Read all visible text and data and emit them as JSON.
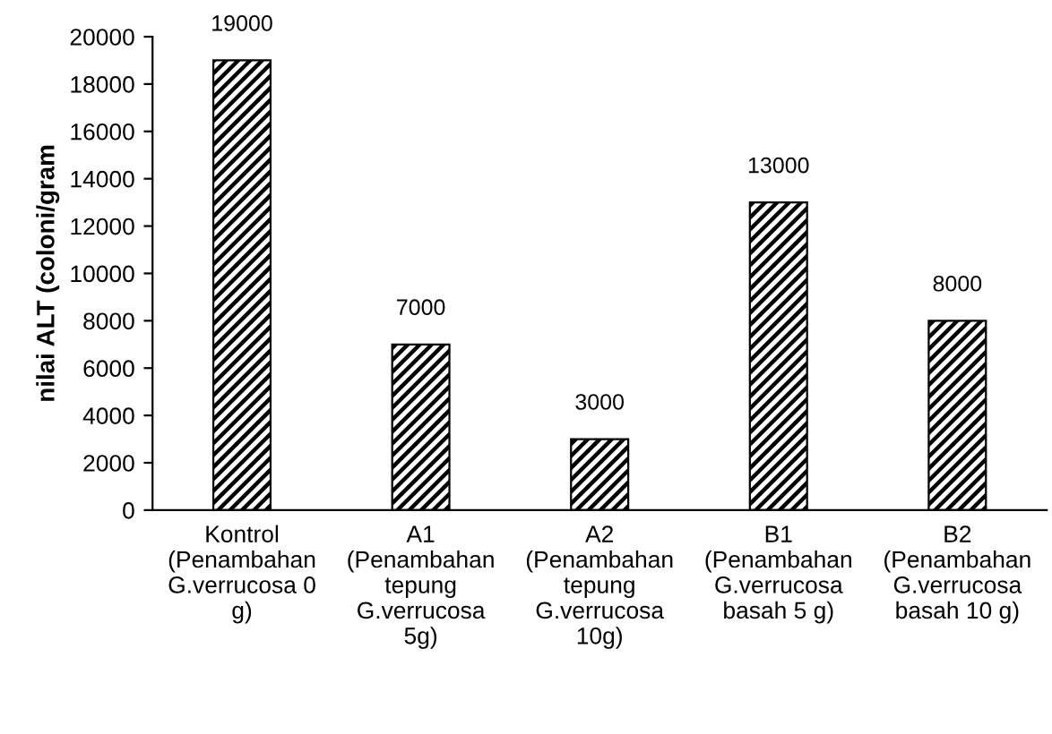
{
  "chart_data": {
    "type": "bar",
    "categories": [
      "Kontrol\n(Penambahan\nG.verrucosa 0\ng)",
      "A1\n(Penambahan\ntepung\nG.verrucosa\n5g)",
      "A2\n(Penambahan\ntepung\nG.verrucosa\n10g)",
      "B1\n(Penambahan\nG.verrucosa\nbasah 5 g)",
      "B2\n(Penambahan\nG.verrucosa\nbasah 10 g)"
    ],
    "values": [
      19000,
      7000,
      3000,
      13000,
      8000
    ],
    "color": "#000000",
    "ylabel": "nilai ALT (coloni/gram",
    "ylim": [
      0,
      20000
    ],
    "yticks": [
      0,
      2000,
      4000,
      6000,
      8000,
      10000,
      12000,
      14000,
      16000,
      18000,
      20000
    ],
    "data_labels": true,
    "grid": false,
    "legend": false
  }
}
